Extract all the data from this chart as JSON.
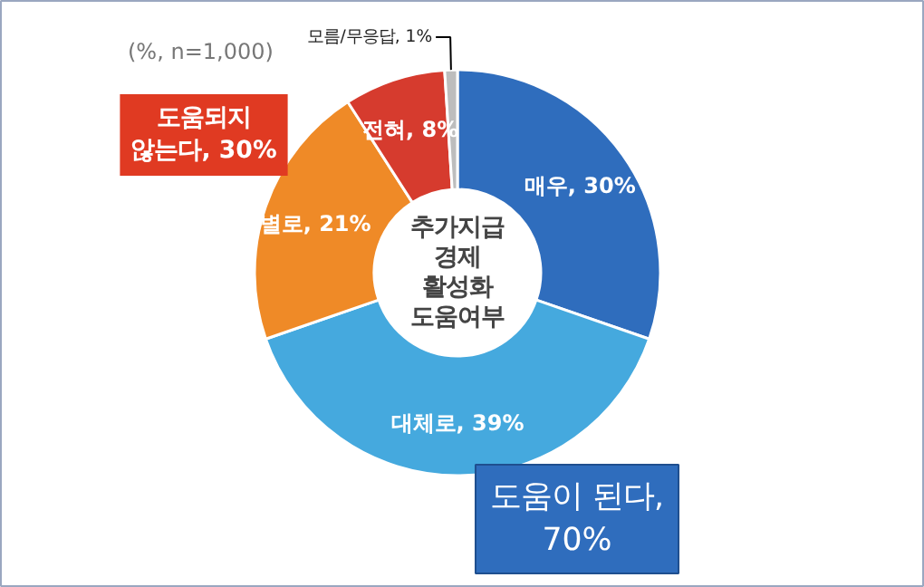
{
  "chart_data": {
    "type": "donut",
    "title": "추가지급 경제 활성화 도움여부",
    "categories": [
      "매우",
      "대체로",
      "별로",
      "전혀",
      "모름/무응답"
    ],
    "values": [
      30,
      39,
      21,
      8,
      1
    ],
    "colors": [
      "#2f6dbd",
      "#45a9de",
      "#ef8a27",
      "#d63b2e",
      "#bdbdbd"
    ],
    "value_labels": [
      "30%",
      "39%",
      "21%",
      "8%",
      "1%"
    ],
    "annotations": [
      "(%, n=1,000)",
      "도움이 된다, 70%",
      "도움되지 않는다, 30%"
    ]
  }
}
